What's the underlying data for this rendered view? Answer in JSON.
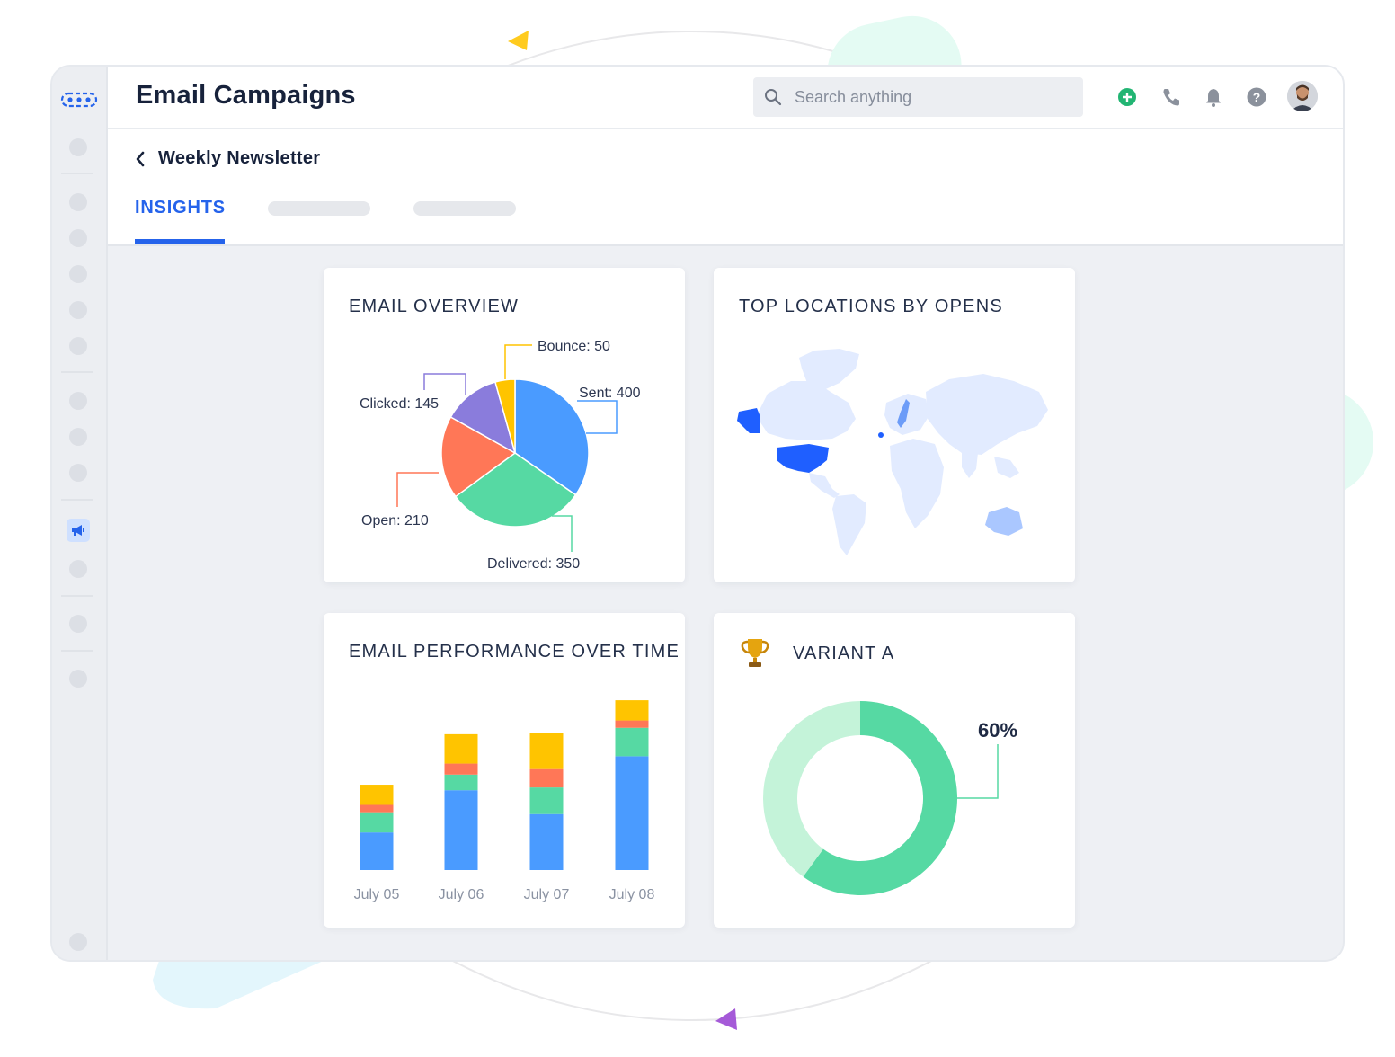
{
  "app": {
    "title": "Email Campaigns",
    "search_placeholder": "Search anything"
  },
  "header_icons": [
    "plus-circle-icon",
    "phone-icon",
    "bell-icon",
    "help-icon"
  ],
  "breadcrumb": {
    "back_label": "Weekly Newsletter"
  },
  "tabs": [
    {
      "label": "INSIGHTS",
      "active": true
    }
  ],
  "colors": {
    "accent": "#2563eb",
    "sent": "#4a9bff",
    "delivered": "#56d9a3",
    "open": "#ff7757",
    "clicked": "#8a7cdc",
    "bounce": "#ffc400"
  },
  "cards": {
    "overview": {
      "title": "EMAIL OVERVIEW",
      "chart_data": {
        "type": "pie",
        "slices": [
          {
            "label": "Sent: 400",
            "name": "Sent",
            "value": 400
          },
          {
            "label": "Delivered: 350",
            "name": "Delivered",
            "value": 350
          },
          {
            "label": "Open: 210",
            "name": "Open",
            "value": 210
          },
          {
            "label": "Clicked: 145",
            "name": "Clicked",
            "value": 145
          },
          {
            "label": "Bounce: 50",
            "name": "Bounce",
            "value": 50
          }
        ]
      }
    },
    "locations": {
      "title": "TOP LOCATIONS BY OPENS",
      "highlighted": [
        "United States",
        "Alaska",
        "Norway",
        "Australia"
      ]
    },
    "performance": {
      "title": "EMAIL PERFORMANCE OVER TIME",
      "chart_data": {
        "type": "bar",
        "stacked": true,
        "categories": [
          "July 05",
          "July 06",
          "July 07",
          "July 08"
        ],
        "series": [
          {
            "color": "#4a9bff",
            "values": [
              41,
              87,
              61,
              124
            ]
          },
          {
            "color": "#56d9a3",
            "values": [
              22,
              17,
              29,
              31
            ]
          },
          {
            "color": "#ff7757",
            "values": [
              8,
              12,
              20,
              8
            ]
          },
          {
            "color": "#ffc400",
            "values": [
              22,
              32,
              39,
              22
            ]
          }
        ],
        "ylim": [
          0,
          190
        ]
      }
    },
    "variant": {
      "title": "VARIANT A",
      "percent_label": "60%",
      "chart_data": {
        "type": "pie",
        "donut": true,
        "slices": [
          {
            "value": 60,
            "color": "#56d9a3"
          },
          {
            "value": 40,
            "color": "#c4f3d9"
          }
        ]
      }
    }
  }
}
